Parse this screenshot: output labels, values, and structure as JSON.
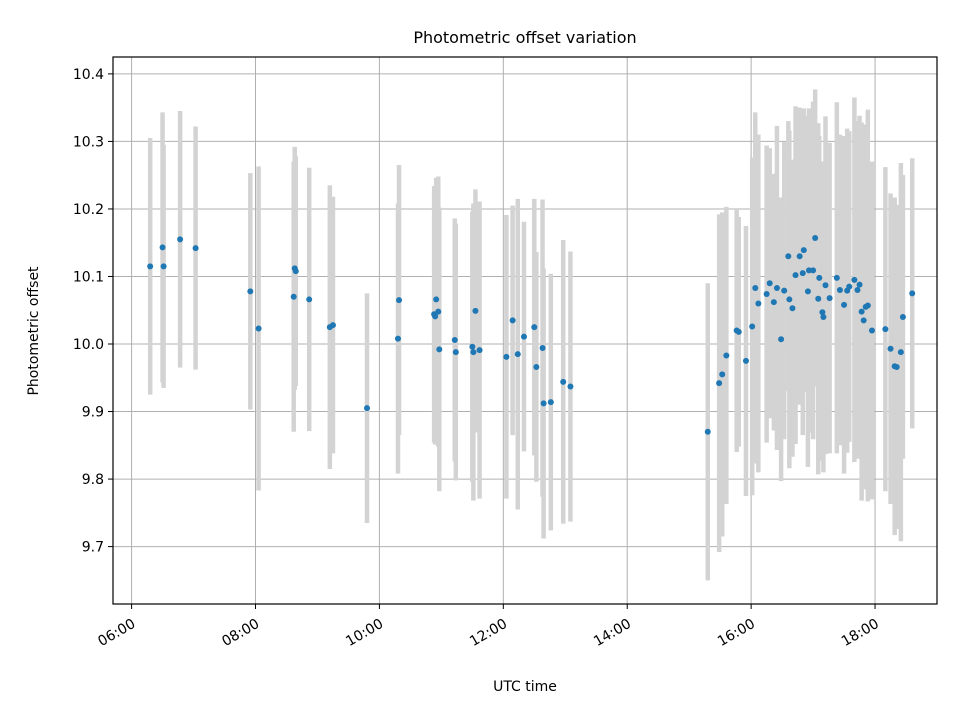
{
  "chart_data": {
    "type": "scatter",
    "title": "Photometric offset variation",
    "xlabel": "UTC time",
    "ylabel": "Photometric offset",
    "x_ticks": [
      "06:00",
      "08:00",
      "10:00",
      "12:00",
      "14:00",
      "16:00",
      "18:00"
    ],
    "y_ticks": [
      "9.7",
      "9.8",
      "9.9",
      "10.0",
      "10.1",
      "10.2",
      "10.3",
      "10.4"
    ],
    "xlim": [
      "05:42",
      "19:00"
    ],
    "ylim": [
      9.615,
      10.425
    ],
    "grid": true,
    "colors": {
      "points": "#1f77b4",
      "errorbars": "#d3d3d3",
      "grid": "#b0b0b0"
    },
    "series": [
      {
        "x": [
          "06:18",
          "06:30",
          "06:31",
          "06:47",
          "07:02",
          "07:55",
          "08:03",
          "08:37",
          "08:38",
          "08:39",
          "08:52",
          "09:12",
          "09:15",
          "09:48",
          "10:18",
          "10:19",
          "10:53",
          "10:54",
          "10:55",
          "10:57",
          "10:58",
          "11:13",
          "11:14",
          "11:30",
          "11:31",
          "11:33",
          "11:37",
          "12:03",
          "12:09",
          "12:14",
          "12:20",
          "12:30",
          "12:32",
          "12:38",
          "12:39",
          "12:46",
          "12:58",
          "13:05",
          "15:18",
          "15:29",
          "15:32",
          "15:36",
          "15:46",
          "15:48",
          "15:55",
          "16:01",
          "16:04",
          "16:07",
          "16:15",
          "16:18",
          "16:22",
          "16:25",
          "16:29",
          "16:32",
          "16:36",
          "16:37",
          "16:40",
          "16:43",
          "16:47",
          "16:50",
          "16:51",
          "16:55",
          "16:56",
          "17:00",
          "17:02",
          "17:05",
          "17:06",
          "17:09",
          "17:10",
          "17:12",
          "17:16",
          "17:23",
          "17:26",
          "17:30",
          "17:33",
          "17:35",
          "17:40",
          "17:43",
          "17:45",
          "17:47",
          "17:49",
          "17:51",
          "17:53",
          "17:57",
          "18:10",
          "18:15",
          "18:19",
          "18:21",
          "18:25",
          "18:27",
          "18:36"
        ],
        "y": [
          10.115,
          10.143,
          10.115,
          10.155,
          10.142,
          10.078,
          10.023,
          10.07,
          10.112,
          10.108,
          10.066,
          10.025,
          10.028,
          9.905,
          10.008,
          10.065,
          10.044,
          10.041,
          10.066,
          10.048,
          9.992,
          10.006,
          9.988,
          9.996,
          9.988,
          10.049,
          9.991,
          9.981,
          10.035,
          9.985,
          10.011,
          10.025,
          9.966,
          9.994,
          9.912,
          9.914,
          9.944,
          9.937,
          9.87,
          9.942,
          9.955,
          9.983,
          10.02,
          10.018,
          9.975,
          10.026,
          10.083,
          10.06,
          10.074,
          10.09,
          10.062,
          10.083,
          10.007,
          10.079,
          10.13,
          10.066,
          10.053,
          10.102,
          10.13,
          10.105,
          10.139,
          10.078,
          10.109,
          10.109,
          10.157,
          10.067,
          10.098,
          10.047,
          10.04,
          10.087,
          10.068,
          10.098,
          10.08,
          10.058,
          10.079,
          10.085,
          10.095,
          10.08,
          10.088,
          10.048,
          10.035,
          10.055,
          10.057,
          10.02,
          10.022,
          9.993,
          9.967,
          9.966,
          9.988,
          10.04,
          10.075
        ],
        "err": [
          0.19,
          0.2,
          0.18,
          0.19,
          0.18,
          0.175,
          0.24,
          0.2,
          0.18,
          0.17,
          0.195,
          0.21,
          0.19,
          0.17,
          0.2,
          0.2,
          0.19,
          0.19,
          0.18,
          0.2,
          0.21,
          0.18,
          0.19,
          0.2,
          0.22,
          0.18,
          0.22,
          0.21,
          0.17,
          0.23,
          0.17,
          0.19,
          0.17,
          0.22,
          0.2,
          0.19,
          0.21,
          0.2,
          0.22,
          0.25,
          0.24,
          0.22,
          0.18,
          0.17,
          0.2,
          0.25,
          0.26,
          0.25,
          0.22,
          0.2,
          0.19,
          0.24,
          0.21,
          0.22,
          0.2,
          0.25,
          0.22,
          0.25,
          0.22,
          0.24,
          0.21,
          0.26,
          0.24,
          0.25,
          0.22,
          0.26,
          0.21,
          0.22,
          0.23,
          0.25,
          0.23,
          0.26,
          0.23,
          0.25,
          0.24,
          0.23,
          0.27,
          0.25,
          0.25,
          0.28,
          0.24,
          0.27,
          0.29,
          0.25,
          0.24,
          0.23,
          0.25,
          0.24,
          0.28,
          0.21,
          0.2
        ]
      }
    ]
  }
}
